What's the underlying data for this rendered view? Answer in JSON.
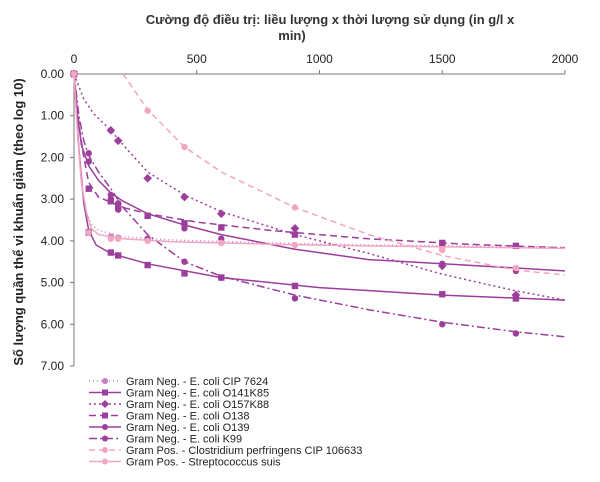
{
  "chart_data": {
    "type": "line",
    "title_lines": [
      "Cường độ điều trị: liều lượng x thời lượng sử dụng (in g/l x",
      "min)"
    ],
    "xlabel": "",
    "ylabel": "Số lượng quần thể vi khuẩn giảm (theo log 10)",
    "xlim": [
      0,
      2000
    ],
    "ylim": [
      0,
      7
    ],
    "y_inverted": true,
    "x_axis_position": "top",
    "x_ticks": [
      0,
      500,
      1000,
      1500,
      2000
    ],
    "y_ticks": [
      0,
      1,
      2,
      3,
      4,
      5,
      6,
      7
    ],
    "y_tick_labels": [
      "0.00",
      "1.00",
      "2.00",
      "3.00",
      "4.00",
      "5.00",
      "6.00",
      "7.00"
    ],
    "grid": false,
    "legend_position": "bottom",
    "series": [
      {
        "name": "Gram Neg. - E. coli CIP 7624",
        "color": "#c77dc7",
        "dash": "1,3",
        "marker": "circle",
        "fit": [
          [
            0,
            0
          ],
          [
            15,
            1.5
          ],
          [
            30,
            2.6
          ],
          [
            50,
            3.3
          ],
          [
            70,
            3.6
          ],
          [
            100,
            3.75
          ],
          [
            200,
            3.9
          ],
          [
            400,
            3.98
          ],
          [
            800,
            4.05
          ],
          [
            1200,
            4.1
          ],
          [
            2000,
            4.15
          ]
        ],
        "points": [
          [
            0,
            0
          ],
          [
            60,
            3.78
          ],
          [
            150,
            3.9
          ],
          [
            180,
            3.93
          ],
          [
            300,
            3.98
          ]
        ]
      },
      {
        "name": "Gram Neg. - E. coli O141K85",
        "color": "#9c3f9c",
        "dash": "",
        "marker": "square",
        "fit": [
          [
            0,
            0
          ],
          [
            20,
            1.8
          ],
          [
            40,
            3.1
          ],
          [
            60,
            3.75
          ],
          [
            90,
            4.1
          ],
          [
            150,
            4.3
          ],
          [
            300,
            4.55
          ],
          [
            600,
            4.88
          ],
          [
            1000,
            5.12
          ],
          [
            1500,
            5.3
          ],
          [
            2000,
            5.42
          ]
        ],
        "points": [
          [
            0,
            0
          ],
          [
            60,
            3.8
          ],
          [
            150,
            4.28
          ],
          [
            180,
            4.35
          ],
          [
            300,
            4.58
          ],
          [
            450,
            4.78
          ],
          [
            600,
            4.88
          ],
          [
            900,
            5.08
          ],
          [
            1500,
            5.28
          ],
          [
            1800,
            5.38
          ]
        ]
      },
      {
        "name": "Gram Neg. - E. coli O157K88",
        "color": "#9c3f9c",
        "dash": "2,3",
        "marker": "diamond",
        "fit": [
          [
            0,
            0
          ],
          [
            40,
            0.6
          ],
          [
            80,
            0.95
          ],
          [
            150,
            1.35
          ],
          [
            200,
            1.7
          ],
          [
            300,
            2.35
          ],
          [
            450,
            2.9
          ],
          [
            600,
            3.3
          ],
          [
            900,
            3.85
          ],
          [
            1200,
            4.3
          ],
          [
            1500,
            4.8
          ],
          [
            1800,
            5.2
          ],
          [
            2000,
            5.42
          ]
        ],
        "points": [
          [
            0,
            0
          ],
          [
            150,
            1.35
          ],
          [
            180,
            1.6
          ],
          [
            300,
            2.5
          ],
          [
            450,
            2.95
          ],
          [
            600,
            3.35
          ],
          [
            900,
            3.7
          ],
          [
            1500,
            4.6
          ],
          [
            1800,
            5.3
          ]
        ]
      },
      {
        "name": "Gram Neg. - E. coli O138",
        "color": "#9c3f9c",
        "dash": "7,4",
        "marker": "square",
        "fit": [
          [
            0,
            0
          ],
          [
            20,
            1.2
          ],
          [
            40,
            2.0
          ],
          [
            60,
            2.6
          ],
          [
            100,
            2.95
          ],
          [
            200,
            3.2
          ],
          [
            300,
            3.35
          ],
          [
            500,
            3.55
          ],
          [
            800,
            3.75
          ],
          [
            1200,
            3.95
          ],
          [
            1600,
            4.08
          ],
          [
            2000,
            4.17
          ]
        ],
        "points": [
          [
            0,
            0
          ],
          [
            60,
            2.75
          ],
          [
            150,
            3.05
          ],
          [
            180,
            3.15
          ],
          [
            300,
            3.4
          ],
          [
            450,
            3.58
          ],
          [
            600,
            3.68
          ],
          [
            900,
            3.85
          ],
          [
            1500,
            4.05
          ],
          [
            1800,
            4.12
          ]
        ]
      },
      {
        "name": "Gram Neg. - E. coli O139",
        "color": "#9c3f9c",
        "dash": "",
        "marker": "circle",
        "fit": [
          [
            0,
            0
          ],
          [
            15,
            1.0
          ],
          [
            30,
            1.7
          ],
          [
            60,
            2.2
          ],
          [
            100,
            2.55
          ],
          [
            150,
            2.85
          ],
          [
            200,
            3.05
          ],
          [
            300,
            3.35
          ],
          [
            450,
            3.62
          ],
          [
            600,
            3.85
          ],
          [
            900,
            4.2
          ],
          [
            1200,
            4.45
          ],
          [
            1500,
            4.55
          ],
          [
            1800,
            4.65
          ],
          [
            2000,
            4.72
          ]
        ],
        "points": [
          [
            0,
            0
          ],
          [
            60,
            2.1
          ],
          [
            150,
            2.9
          ],
          [
            180,
            3.1
          ],
          [
            300,
            3.4
          ],
          [
            450,
            3.7
          ],
          [
            600,
            3.95
          ],
          [
            1500,
            4.55
          ],
          [
            1800,
            4.72
          ]
        ]
      },
      {
        "name": "Gram Neg. - E. coli K99",
        "color": "#9c3f9c",
        "dash": "8,3,2,3",
        "marker": "circle",
        "fit": [
          [
            0,
            0
          ],
          [
            20,
            1.0
          ],
          [
            40,
            1.6
          ],
          [
            60,
            1.95
          ],
          [
            100,
            2.35
          ],
          [
            150,
            2.75
          ],
          [
            200,
            3.2
          ],
          [
            300,
            3.85
          ],
          [
            450,
            4.5
          ],
          [
            600,
            4.85
          ],
          [
            900,
            5.3
          ],
          [
            1200,
            5.65
          ],
          [
            1500,
            5.95
          ],
          [
            1800,
            6.18
          ],
          [
            2000,
            6.3
          ]
        ],
        "points": [
          [
            0,
            0
          ],
          [
            60,
            1.9
          ],
          [
            150,
            3.0
          ],
          [
            180,
            3.25
          ],
          [
            300,
            3.95
          ],
          [
            450,
            4.5
          ],
          [
            600,
            4.88
          ],
          [
            900,
            5.38
          ],
          [
            1500,
            6.0
          ],
          [
            1800,
            6.22
          ]
        ]
      },
      {
        "name": "Gram Pos. - Clostridium perfringens CIP 106633",
        "color": "#f2a6bf",
        "dash": "6,4",
        "marker": "circle",
        "fit": [
          [
            200,
            0
          ],
          [
            300,
            0.85
          ],
          [
            450,
            1.75
          ],
          [
            600,
            2.35
          ],
          [
            900,
            3.2
          ],
          [
            1200,
            3.85
          ],
          [
            1500,
            4.35
          ],
          [
            1800,
            4.7
          ],
          [
            2000,
            4.82
          ]
        ],
        "points": [
          [
            300,
            0.88
          ],
          [
            450,
            1.75
          ],
          [
            900,
            3.2
          ],
          [
            1500,
            4.2
          ],
          [
            1800,
            4.65
          ]
        ]
      },
      {
        "name": "Gram Pos. - Streptococcus suis",
        "color": "#f2a6bf",
        "dash": "",
        "marker": "circle",
        "fit": [
          [
            0,
            0
          ],
          [
            15,
            1.5
          ],
          [
            30,
            2.6
          ],
          [
            50,
            3.3
          ],
          [
            70,
            3.7
          ],
          [
            100,
            3.85
          ],
          [
            200,
            3.95
          ],
          [
            400,
            4.02
          ],
          [
            800,
            4.08
          ],
          [
            1200,
            4.12
          ],
          [
            1600,
            4.15
          ],
          [
            2000,
            4.18
          ]
        ],
        "points": [
          [
            0,
            0
          ],
          [
            60,
            3.8
          ],
          [
            150,
            3.95
          ],
          [
            180,
            3.95
          ],
          [
            300,
            4.0
          ],
          [
            600,
            4.05
          ],
          [
            900,
            4.1
          ],
          [
            1500,
            4.22
          ]
        ]
      }
    ]
  }
}
